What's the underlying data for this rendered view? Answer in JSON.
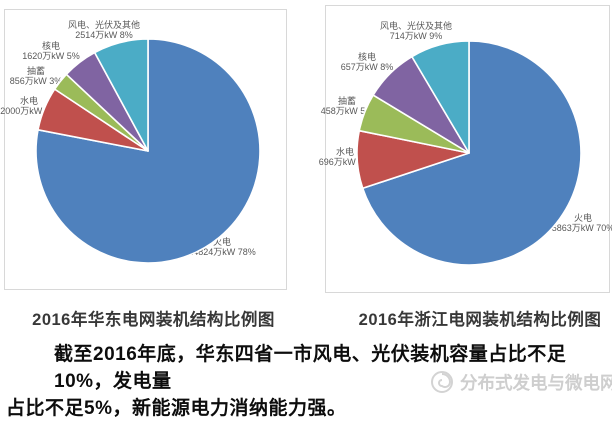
{
  "chart_data": [
    {
      "type": "pie",
      "title": "2016年华东电网装机结构比例图",
      "unit": "万kW",
      "labels": [
        "火电",
        "水电",
        "抽蓄",
        "核电",
        "风电、光伏及其他"
      ],
      "values": [
        24824,
        2000,
        856,
        1620,
        2514
      ],
      "percents": [
        "78%",
        "6%",
        "3%",
        "5%",
        "8%"
      ],
      "slice_labels": [
        "24824万kW  78%",
        "2000万kW  6%",
        "856万kW  3%",
        "1620万kW  5%",
        "2514万kW  8%"
      ],
      "colors": [
        "#4F81BD",
        "#C0504D",
        "#9BBB59",
        "#8064A2",
        "#4BACC6"
      ],
      "start_angle_deg": 0,
      "direction": "clockwise",
      "legend": "none",
      "slice_border_color": "#ffffff"
    },
    {
      "type": "pie",
      "title": "2016年浙江电网装机结构比例图",
      "unit": "万kW",
      "labels": [
        "火电",
        "水电",
        "抽蓄",
        "核电",
        "风电、光伏及其他"
      ],
      "values": [
        5863,
        696,
        458,
        657,
        714
      ],
      "percents": [
        "70%",
        "8%",
        "5%",
        "8%",
        "9%"
      ],
      "slice_labels": [
        "5863万kW  70%",
        "696万kW  8%",
        "458万kW  5%",
        "657万kW  8%",
        "714万kW  9%"
      ],
      "colors": [
        "#4F81BD",
        "#C0504D",
        "#9BBB59",
        "#8064A2",
        "#4BACC6"
      ],
      "start_angle_deg": 0,
      "direction": "clockwise",
      "legend": "none",
      "slice_border_color": "#ffffff"
    }
  ],
  "caption": {
    "line1": "截至2016年底，华东四省一市风电、光伏装机容量占比不足10%，发电量",
    "line2": "占比不足5%，新能源电力消纳能力强。"
  },
  "watermark": {
    "text": "分布式发电与微电网",
    "color": "#c6c6c6"
  }
}
